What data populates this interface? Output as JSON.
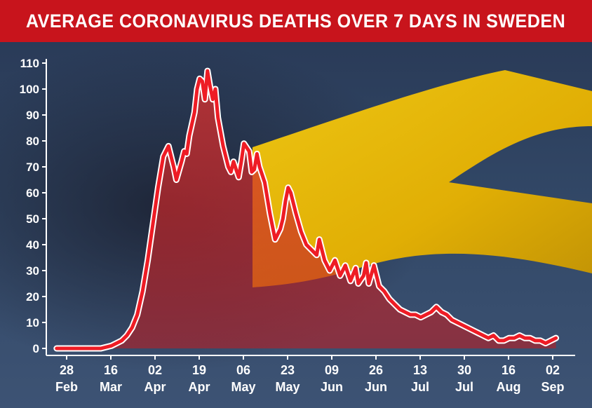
{
  "title": "AVERAGE CORONAVIRUS DEATHS OVER 7 DAYS IN SWEDEN",
  "colors": {
    "title_bar": "#c8141c",
    "line": "#ee1c25",
    "area_fill": "#d32a2a",
    "flag_yellow": "#f5c300",
    "background": "#324867"
  },
  "chart_data": {
    "type": "area",
    "title": "AVERAGE CORONAVIRUS DEATHS OVER 7 DAYS IN SWEDEN",
    "xlabel": "",
    "ylabel": "",
    "ylim": [
      0,
      110
    ],
    "yticks": [
      "0",
      "10",
      "20",
      "30",
      "40",
      "50",
      "60",
      "70",
      "80",
      "90",
      "100",
      "110"
    ],
    "xticks": [
      {
        "day": "28",
        "month": "Feb"
      },
      {
        "day": "16",
        "month": "Mar"
      },
      {
        "day": "02",
        "month": "Apr"
      },
      {
        "day": "19",
        "month": "Apr"
      },
      {
        "day": "06",
        "month": "May"
      },
      {
        "day": "23",
        "month": "May"
      },
      {
        "day": "09",
        "month": "Jun"
      },
      {
        "day": "26",
        "month": "Jun"
      },
      {
        "day": "13",
        "month": "Jul"
      },
      {
        "day": "30",
        "month": "Jul"
      },
      {
        "day": "16",
        "month": "Aug"
      },
      {
        "day": "02",
        "month": "Sep"
      }
    ],
    "grid": false,
    "series": [
      {
        "x": [
          "2020-02-24",
          "2020-03-05",
          "2020-03-12",
          "2020-03-16",
          "2020-03-18",
          "2020-03-20",
          "2020-03-22",
          "2020-03-24",
          "2020-03-26",
          "2020-03-28",
          "2020-03-30",
          "2020-04-01",
          "2020-04-03",
          "2020-04-05",
          "2020-04-07",
          "2020-04-09",
          "2020-04-10",
          "2020-04-12",
          "2020-04-13",
          "2020-04-14",
          "2020-04-15",
          "2020-04-17",
          "2020-04-18",
          "2020-04-19",
          "2020-04-20",
          "2020-04-21",
          "2020-04-22",
          "2020-04-23",
          "2020-04-24",
          "2020-04-25",
          "2020-04-26",
          "2020-04-28",
          "2020-04-29",
          "2020-04-30",
          "2020-05-01",
          "2020-05-02",
          "2020-05-03",
          "2020-05-04",
          "2020-05-05",
          "2020-05-06",
          "2020-05-08",
          "2020-05-09",
          "2020-05-10",
          "2020-05-11",
          "2020-05-12",
          "2020-05-13",
          "2020-05-14",
          "2020-05-15",
          "2020-05-16",
          "2020-05-18",
          "2020-05-20",
          "2020-05-21",
          "2020-05-22",
          "2020-05-23",
          "2020-05-24",
          "2020-05-26",
          "2020-05-28",
          "2020-05-30",
          "2020-06-01",
          "2020-06-03",
          "2020-06-04",
          "2020-06-05",
          "2020-06-06",
          "2020-06-08",
          "2020-06-10",
          "2020-06-12",
          "2020-06-14",
          "2020-06-15",
          "2020-06-16",
          "2020-06-18",
          "2020-06-19",
          "2020-06-21",
          "2020-06-22",
          "2020-06-23",
          "2020-06-25",
          "2020-06-26",
          "2020-06-27",
          "2020-06-29",
          "2020-07-01",
          "2020-07-03",
          "2020-07-05",
          "2020-07-07",
          "2020-07-09",
          "2020-07-11",
          "2020-07-13",
          "2020-07-15",
          "2020-07-17",
          "2020-07-19",
          "2020-07-21",
          "2020-07-23",
          "2020-07-25",
          "2020-07-27",
          "2020-07-29",
          "2020-07-31",
          "2020-08-02",
          "2020-08-04",
          "2020-08-06",
          "2020-08-08",
          "2020-08-10",
          "2020-08-12",
          "2020-08-14",
          "2020-08-16",
          "2020-08-18",
          "2020-08-20",
          "2020-08-22",
          "2020-08-24",
          "2020-08-26",
          "2020-08-28",
          "2020-08-30",
          "2020-09-01",
          "2020-09-03"
        ],
        "values": [
          0,
          0,
          0,
          1,
          2,
          3,
          5,
          8,
          13,
          22,
          34,
          48,
          62,
          74,
          78,
          70,
          65,
          72,
          76,
          75,
          82,
          91,
          100,
          104,
          103,
          96,
          107,
          101,
          96,
          100,
          89,
          78,
          74,
          70,
          68,
          72,
          69,
          66,
          72,
          79,
          76,
          68,
          69,
          75,
          70,
          67,
          64,
          58,
          52,
          42,
          46,
          50,
          57,
          62,
          60,
          52,
          45,
          40,
          38,
          36,
          42,
          38,
          34,
          30,
          34,
          28,
          32,
          29,
          26,
          31,
          25,
          28,
          33,
          25,
          32,
          28,
          24,
          22,
          19,
          17,
          15,
          14,
          13,
          13,
          12,
          13,
          14,
          16,
          14,
          13,
          11,
          10,
          9,
          8,
          7,
          6,
          5,
          4,
          5,
          3,
          3,
          4,
          4,
          5,
          4,
          4,
          3,
          3,
          2,
          3,
          4
        ]
      }
    ]
  }
}
